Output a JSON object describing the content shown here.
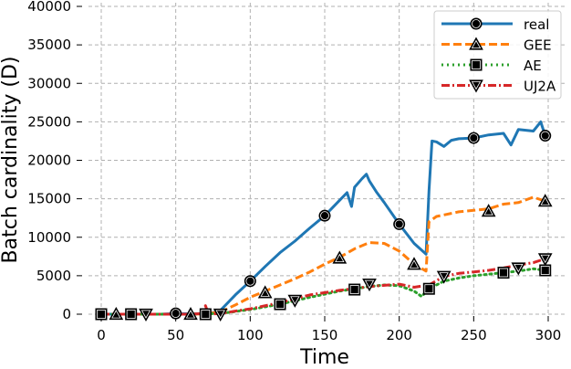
{
  "chart_data": {
    "type": "line",
    "title": "",
    "xlabel": "Time",
    "ylabel": "Batch cardinality (D)",
    "xlim": [
      -8,
      308
    ],
    "ylim": [
      0,
      40000
    ],
    "xticks": [
      0,
      50,
      100,
      150,
      200,
      250,
      300
    ],
    "yticks": [
      0,
      5000,
      10000,
      15000,
      20000,
      25000,
      30000,
      35000,
      40000
    ],
    "xtick_labels": [
      "0",
      "50",
      "100",
      "150",
      "200",
      "250",
      "300"
    ],
    "ytick_labels": [
      "0",
      "5000",
      "10000",
      "15000",
      "20000",
      "25000",
      "30000",
      "35000",
      "40000"
    ],
    "grid": true,
    "legend_position": "upper right",
    "series": [
      {
        "name": "real",
        "color": "#1f77b4",
        "linestyle": "solid",
        "marker": "circle",
        "x": [
          0,
          10,
          20,
          30,
          40,
          50,
          60,
          70,
          75,
          80,
          85,
          90,
          100,
          110,
          120,
          130,
          140,
          150,
          160,
          165,
          168,
          170,
          175,
          178,
          180,
          185,
          190,
          200,
          210,
          218,
          220,
          222,
          225,
          230,
          235,
          240,
          250,
          260,
          270,
          275,
          280,
          290,
          295,
          298
        ],
        "y": [
          0,
          0,
          0,
          0,
          0,
          100,
          50,
          100,
          200,
          500,
          1500,
          2500,
          4300,
          6200,
          8000,
          9500,
          11200,
          12800,
          14800,
          15800,
          14000,
          16500,
          17600,
          18200,
          17300,
          15800,
          14500,
          11700,
          9200,
          7800,
          16000,
          22500,
          22400,
          21800,
          22600,
          22800,
          22900,
          23300,
          23500,
          22000,
          24000,
          23800,
          25000,
          23200
        ],
        "marker_x": [
          0,
          50,
          100,
          150,
          200,
          250,
          298
        ],
        "marker_y": [
          0,
          100,
          4300,
          12800,
          11700,
          22900,
          23200
        ]
      },
      {
        "name": "GEE",
        "color": "#ff7f0e",
        "linestyle": "dashed",
        "marker": "triangle-up",
        "x": [
          0,
          10,
          20,
          30,
          40,
          50,
          60,
          70,
          80,
          90,
          100,
          110,
          120,
          130,
          140,
          150,
          160,
          170,
          180,
          190,
          200,
          210,
          218,
          220,
          225,
          230,
          240,
          250,
          260,
          270,
          280,
          290,
          298
        ],
        "y": [
          0,
          0,
          0,
          0,
          0,
          0,
          0,
          50,
          300,
          1200,
          2200,
          3000,
          3800,
          4600,
          5500,
          6500,
          7400,
          8500,
          9300,
          9200,
          8200,
          6500,
          5600,
          12000,
          12700,
          12900,
          13300,
          13500,
          13700,
          14300,
          14500,
          15200,
          14700
        ],
        "marker_x": [
          10,
          60,
          110,
          160,
          210,
          260,
          298
        ],
        "marker_y": [
          0,
          0,
          2800,
          7300,
          6500,
          13400,
          14700
        ]
      },
      {
        "name": "AE",
        "color": "#2ca02c",
        "linestyle": "dotted",
        "marker": "square",
        "x": [
          0,
          20,
          40,
          60,
          80,
          100,
          120,
          140,
          160,
          170,
          180,
          190,
          200,
          210,
          215,
          220,
          230,
          240,
          250,
          260,
          270,
          280,
          290,
          298
        ],
        "y": [
          0,
          0,
          0,
          0,
          100,
          600,
          1300,
          2200,
          3000,
          3300,
          3600,
          3800,
          3700,
          3000,
          2300,
          3300,
          4300,
          4700,
          5000,
          5200,
          5400,
          5600,
          5900,
          5700
        ],
        "marker_x": [
          0,
          20,
          70,
          120,
          170,
          220,
          270,
          298
        ],
        "marker_y": [
          0,
          0,
          0,
          1300,
          3200,
          3300,
          5400,
          5700
        ]
      },
      {
        "name": "UJ2A",
        "color": "#d62728",
        "linestyle": "dashdot",
        "marker": "triangle-down",
        "x": [
          0,
          20,
          40,
          60,
          68,
          70,
          72,
          80,
          100,
          120,
          140,
          160,
          180,
          200,
          210,
          220,
          230,
          240,
          250,
          260,
          270,
          280,
          290,
          298
        ],
        "y": [
          0,
          0,
          0,
          0,
          100,
          1100,
          0,
          100,
          700,
          1500,
          2500,
          3100,
          3600,
          3900,
          3500,
          3800,
          4900,
          5300,
          5500,
          5700,
          6000,
          6400,
          6700,
          7200
        ],
        "marker_x": [
          30,
          80,
          130,
          180,
          230,
          280,
          298
        ],
        "marker_y": [
          0,
          0,
          1800,
          3900,
          4900,
          6000,
          7200
        ]
      }
    ]
  }
}
